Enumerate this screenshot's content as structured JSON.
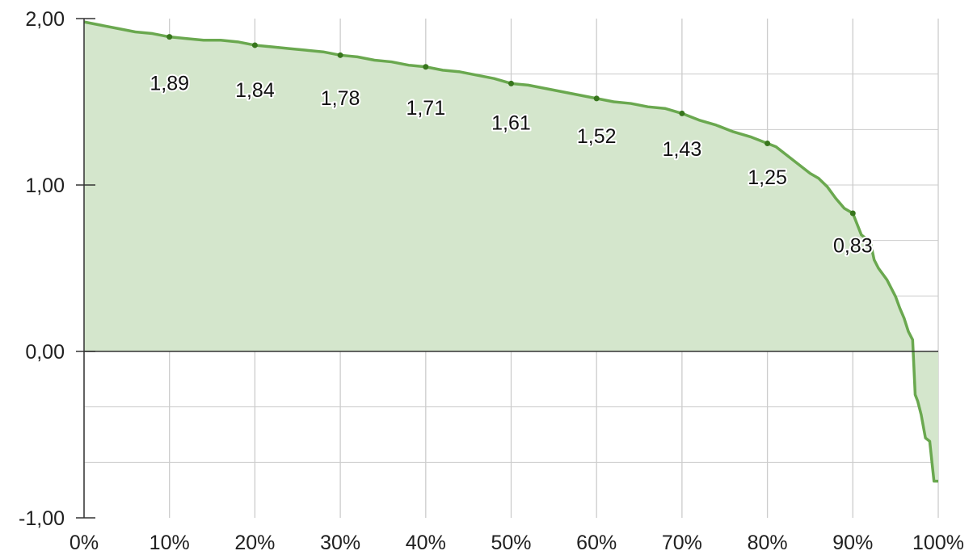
{
  "chart_data": {
    "type": "area",
    "title": "",
    "xlabel": "",
    "ylabel": "",
    "xlim": [
      0,
      100
    ],
    "ylim": [
      -1,
      2
    ],
    "grid": true,
    "x_ticks": [
      0,
      10,
      20,
      30,
      40,
      50,
      60,
      70,
      80,
      90,
      100
    ],
    "x_tick_labels": [
      "0%",
      "10%",
      "20%",
      "30%",
      "40%",
      "50%",
      "60%",
      "70%",
      "80%",
      "90%",
      "100%"
    ],
    "y_ticks": [
      2,
      1,
      0,
      -1
    ],
    "y_tick_labels": [
      "2,00",
      "1,00",
      "0,00",
      "-1,00"
    ],
    "colors": {
      "line": "#6aa84f",
      "fill": "#d4e6cc",
      "marker": "#38761d",
      "grid": "#cccccc",
      "axis": "#333333"
    },
    "series": [
      {
        "x": [
          0,
          2,
          4,
          6,
          8,
          10,
          12,
          14,
          16,
          18,
          20,
          22,
          24,
          26,
          28,
          30,
          32,
          34,
          36,
          38,
          40,
          42,
          44,
          46,
          48,
          50,
          52,
          54,
          56,
          58,
          60,
          62,
          64,
          66,
          68,
          70,
          72,
          74,
          76,
          78,
          80,
          81,
          82,
          83,
          84,
          85,
          86,
          87,
          88,
          89,
          90,
          91,
          91.5,
          92,
          92.5,
          93,
          94,
          95,
          95.5,
          96,
          96.5,
          97,
          97.3,
          97.6,
          98,
          98.5,
          99,
          99.5,
          100
        ],
        "values": [
          1.98,
          1.96,
          1.94,
          1.92,
          1.91,
          1.89,
          1.88,
          1.87,
          1.87,
          1.86,
          1.84,
          1.83,
          1.82,
          1.81,
          1.8,
          1.78,
          1.77,
          1.75,
          1.74,
          1.72,
          1.71,
          1.69,
          1.68,
          1.66,
          1.64,
          1.61,
          1.6,
          1.58,
          1.56,
          1.54,
          1.52,
          1.5,
          1.49,
          1.47,
          1.46,
          1.43,
          1.39,
          1.36,
          1.32,
          1.29,
          1.25,
          1.23,
          1.19,
          1.15,
          1.11,
          1.07,
          1.04,
          0.99,
          0.92,
          0.86,
          0.83,
          0.7,
          0.68,
          0.67,
          0.55,
          0.5,
          0.43,
          0.33,
          0.26,
          0.2,
          0.12,
          0.07,
          -0.26,
          -0.3,
          -0.38,
          -0.52,
          -0.54,
          -0.78,
          -0.78
        ]
      }
    ],
    "markers": [
      {
        "x": 10,
        "y": 1.89,
        "label": "1,89"
      },
      {
        "x": 20,
        "y": 1.84,
        "label": "1,84"
      },
      {
        "x": 30,
        "y": 1.78,
        "label": "1,78"
      },
      {
        "x": 40,
        "y": 1.71,
        "label": "1,71"
      },
      {
        "x": 50,
        "y": 1.61,
        "label": "1,61"
      },
      {
        "x": 60,
        "y": 1.52,
        "label": "1,52"
      },
      {
        "x": 70,
        "y": 1.43,
        "label": "1,43"
      },
      {
        "x": 80,
        "y": 1.25,
        "label": "1,25"
      },
      {
        "x": 90,
        "y": 0.83,
        "label": "0,83"
      }
    ]
  }
}
